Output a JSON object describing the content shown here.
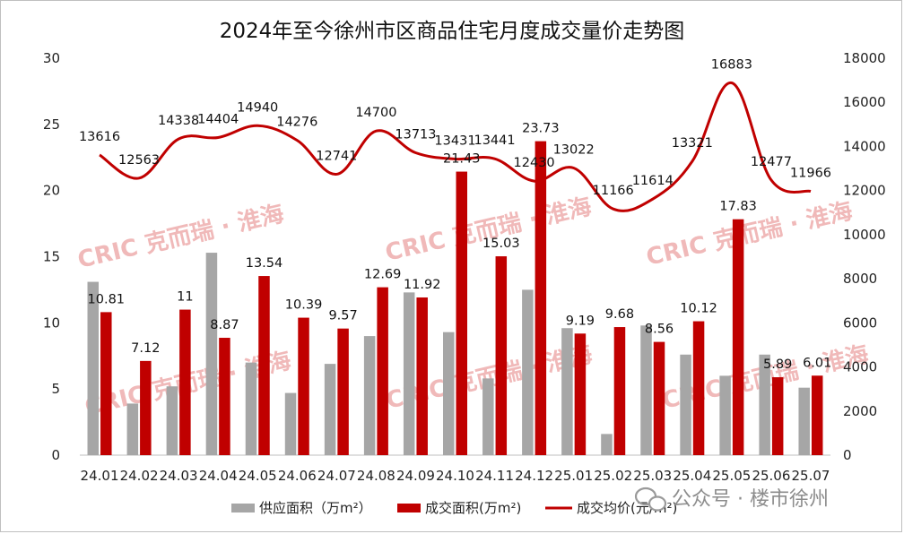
{
  "chart_data": {
    "type": "bar",
    "title": "2024年至今徐州市区商品住宅月度成交量价走势图",
    "categories": [
      "24.01",
      "24.02",
      "24.03",
      "24.04",
      "24.05",
      "24.06",
      "24.07",
      "24.08",
      "24.09",
      "24.10",
      "24.11",
      "24.12",
      "25.01",
      "25.02",
      "25.03",
      "25.04",
      "25.05",
      "25.06",
      "25.07"
    ],
    "series": [
      {
        "name": "供应面积（万m²）",
        "type": "bar",
        "axis": "left",
        "color": "#a6a6a6",
        "values": [
          13.1,
          3.9,
          5.2,
          15.3,
          7.0,
          4.7,
          6.9,
          9.0,
          12.3,
          9.3,
          5.8,
          12.5,
          9.6,
          1.6,
          9.8,
          7.6,
          6.0,
          7.6,
          5.1
        ],
        "labels": []
      },
      {
        "name": "成交面积(万m²)",
        "type": "bar",
        "axis": "left",
        "color": "#c00000",
        "values": [
          10.81,
          7.12,
          11,
          8.87,
          13.54,
          10.39,
          9.57,
          12.69,
          11.92,
          21.43,
          15.03,
          23.73,
          9.19,
          9.68,
          8.56,
          10.12,
          17.83,
          5.89,
          6.01
        ],
        "labels": [
          "10.81",
          "7.12",
          "11",
          "8.87",
          "13.54",
          "10.39",
          "9.57",
          "12.69",
          "11.92",
          "21.43",
          "15.03",
          "23.73",
          "9.19",
          "9.68",
          "8.56",
          "10.12",
          "17.83",
          "5.89",
          "6.01"
        ]
      },
      {
        "name": "成交均价(元/m²)",
        "type": "line",
        "axis": "right",
        "color": "#c00000",
        "values": [
          13616,
          12563,
          14338,
          14404,
          14940,
          14276,
          12741,
          14700,
          13713,
          13431,
          13441,
          12430,
          13022,
          11166,
          11614,
          13321,
          16883,
          12477,
          11966
        ],
        "labels": [
          "13616",
          "12563",
          "14338",
          "14404",
          "14940",
          "14276",
          "12741",
          "14700",
          "13713",
          "13431",
          "13441",
          "12430",
          "13022",
          "11166",
          "11614",
          "13321",
          "16883",
          "12477",
          "11966"
        ]
      }
    ],
    "yleft": {
      "lim": [
        0,
        30
      ],
      "ticks": [
        "0",
        "5",
        "10",
        "15",
        "20",
        "25",
        "30"
      ]
    },
    "yright": {
      "lim": [
        0,
        18000
      ],
      "ticks": [
        "0",
        "2000",
        "4000",
        "6000",
        "8000",
        "10000",
        "12000",
        "14000",
        "16000",
        "18000"
      ]
    },
    "grid": false,
    "legend_position": "bottom"
  },
  "watermark_text": "CRIC 克而瑞 · 淮海",
  "credit_text": "公众号 · 楼市徐州"
}
